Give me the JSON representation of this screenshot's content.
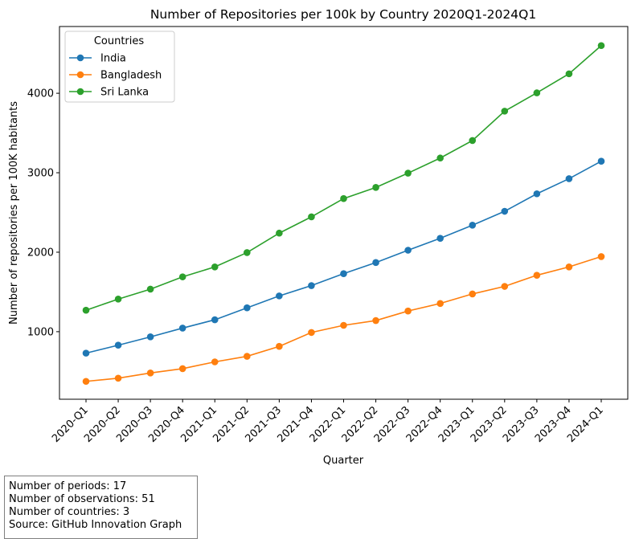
{
  "chart_data": {
    "type": "line",
    "title": "Number of Repositories per 100k by Country 2020Q1-2024Q1",
    "xlabel": "Quarter",
    "ylabel": "Number of repositories per 100K habitants",
    "categories": [
      "2020-Q1",
      "2020-Q2",
      "2020-Q3",
      "2020-Q4",
      "2021-Q1",
      "2021-Q2",
      "2021-Q3",
      "2021-Q4",
      "2022-Q1",
      "2022-Q2",
      "2022-Q3",
      "2022-Q4",
      "2023-Q1",
      "2023-Q2",
      "2023-Q3",
      "2023-Q4",
      "2024-Q1"
    ],
    "yticks": [
      1000,
      2000,
      3000,
      4000
    ],
    "ylim": [
      150,
      4840
    ],
    "grid": false,
    "legend": {
      "title": "Countries",
      "placement": "top-left"
    },
    "series": [
      {
        "name": "India",
        "color": "#1f77b4",
        "values": [
          730,
          830,
          935,
          1045,
          1150,
          1300,
          1450,
          1580,
          1730,
          1870,
          2025,
          2175,
          2340,
          2515,
          2735,
          2925,
          3145
        ]
      },
      {
        "name": "Bangladesh",
        "color": "#ff7f0e",
        "values": [
          375,
          415,
          480,
          535,
          620,
          690,
          815,
          990,
          1080,
          1140,
          1260,
          1355,
          1475,
          1570,
          1710,
          1815,
          1945
        ]
      },
      {
        "name": "Sri Lanka",
        "color": "#2ca02c",
        "values": [
          1270,
          1410,
          1535,
          1690,
          1815,
          1995,
          2240,
          2445,
          2675,
          2815,
          2995,
          3185,
          3405,
          3775,
          4005,
          4245,
          4600
        ]
      }
    ]
  },
  "info": {
    "periods": "Number of periods: 17",
    "observations": "Number of observations: 51",
    "countries": "Number of countries: 3",
    "source": "Source: GitHub Innovation Graph"
  }
}
